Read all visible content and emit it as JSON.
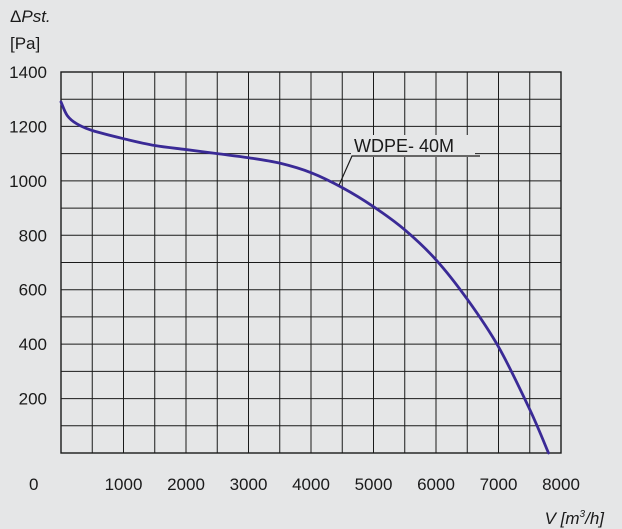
{
  "chart_data": {
    "type": "line",
    "ylabel_symbol": "Δ",
    "ylabel_var": "Pst.",
    "ylabel_unit": "[Pa]",
    "xlabel_prefix": "V [m",
    "xlabel_sup": "3",
    "xlabel_suffix": "/h]",
    "xlim": [
      0,
      8000
    ],
    "ylim": [
      0,
      1400
    ],
    "xticks": [
      1000,
      2000,
      3000,
      4000,
      5000,
      6000,
      7000,
      8000
    ],
    "yticks": [
      200,
      400,
      600,
      800,
      1000,
      1200,
      1400
    ],
    "origin_label": "0",
    "grid": true,
    "series": [
      {
        "name": "WDPE- 40M",
        "color": "#3a2a96",
        "x": [
          0,
          100,
          250,
          500,
          1000,
          1500,
          2000,
          2500,
          3000,
          3500,
          4000,
          4500,
          5000,
          5500,
          6000,
          6500,
          7000,
          7500,
          7800
        ],
        "y": [
          1290,
          1240,
          1210,
          1185,
          1155,
          1130,
          1115,
          1100,
          1085,
          1065,
          1030,
          975,
          905,
          820,
          710,
          565,
          390,
          160,
          0
        ]
      }
    ]
  }
}
